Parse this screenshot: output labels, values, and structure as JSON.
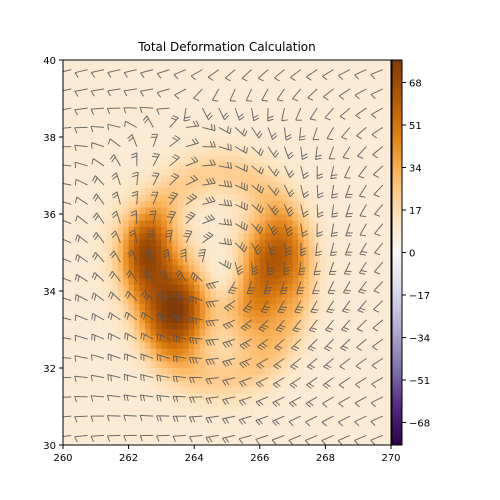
{
  "chart_data": {
    "type": "heatmap",
    "title": "Total Deformation Calculation",
    "xlabel": "",
    "ylabel": "",
    "xlim": [
      260,
      270
    ],
    "ylim": [
      30,
      40
    ],
    "x_ticks": [
      260,
      262,
      264,
      266,
      268,
      270
    ],
    "y_ticks": [
      30,
      32,
      34,
      36,
      38,
      40
    ],
    "colorbar": {
      "colormap": "PuOr_r",
      "range": [
        -77,
        77
      ],
      "ticks": [
        68,
        51,
        34,
        17,
        0,
        -17,
        -34,
        -51,
        -68
      ]
    },
    "overlay": "wind-barbs",
    "deformation_maxima": [
      {
        "x": 263.5,
        "y": 33.5,
        "value": 74
      },
      {
        "x": 262.6,
        "y": 35.0,
        "value": 55
      },
      {
        "x": 266.4,
        "y": 34.9,
        "value": 55
      },
      {
        "x": 265.8,
        "y": 33.6,
        "value": 38
      }
    ]
  }
}
